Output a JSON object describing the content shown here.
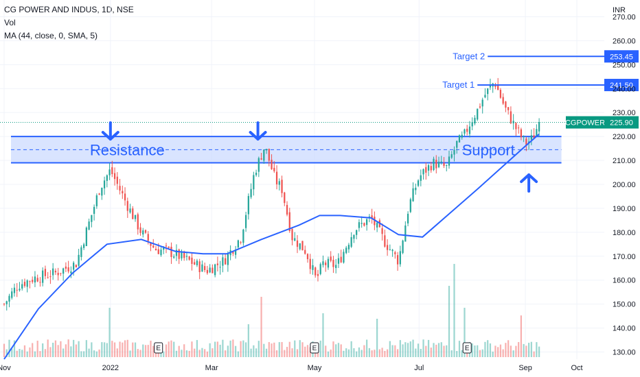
{
  "header": {
    "symbol_line": "CG POWER AND INDUS, 1D, NSE",
    "vol_label": "Vol",
    "ma_label": "MA (44, close, 0, SMA, 5)"
  },
  "currency": "INR",
  "colors": {
    "up": "#26a69a",
    "down": "#ef5350",
    "ma": "#2962ff",
    "zone_fill": "#c9d9ff",
    "zone_line": "#2962ff",
    "annotation": "#2962ff",
    "ticker_badge": "#089981"
  },
  "chart_data": {
    "type": "candlestick",
    "title": "CG POWER AND INDUS, 1D, NSE",
    "ylim": [
      127,
      277
    ],
    "y_ticks": [
      270,
      260,
      250,
      240,
      230,
      220,
      210,
      200,
      190,
      180,
      170,
      160,
      150,
      140,
      130
    ],
    "y_tick_labels": [
      "270.00",
      "260.00",
      "250.00",
      "240.00",
      "230.00",
      "220.00",
      "210.00",
      "200.00",
      "190.00",
      "180.00",
      "170.00",
      "160.00",
      "150.00",
      "140.00",
      "130.00"
    ],
    "x_tick_labels": [
      "Nov",
      "2022",
      "Mar",
      "May",
      "Jul",
      "Sep",
      "Oct"
    ],
    "x_tick_days": [
      0,
      62,
      121,
      181,
      242,
      304,
      334
    ],
    "x_range_days": [
      0,
      350
    ],
    "earnings_marker_days": [
      90,
      181,
      270,
      377
    ],
    "anchor_days": [
      0,
      8,
      18,
      30,
      42,
      50,
      56,
      62,
      70,
      80,
      88,
      96,
      108,
      118,
      128,
      138,
      146,
      152,
      158,
      162,
      168,
      176,
      182,
      186,
      194,
      204,
      214,
      222,
      230,
      236,
      242,
      250,
      258,
      264,
      268,
      272,
      276,
      280,
      286,
      292,
      298,
      304,
      308,
      312
    ],
    "anchor_prices": [
      150,
      158,
      161,
      163,
      167,
      185,
      199,
      206,
      194,
      180,
      173,
      172,
      168,
      164,
      168,
      178,
      205,
      216,
      202,
      198,
      178,
      172,
      160,
      167,
      166,
      181,
      186,
      176,
      168,
      191,
      203,
      209,
      207,
      217,
      220,
      226,
      231,
      237,
      243,
      232,
      224,
      217,
      219,
      225.9
    ],
    "ma": {
      "name": "MA (44, close, 0, SMA, 5)",
      "days": [
        0,
        20,
        40,
        60,
        80,
        100,
        116,
        130,
        150,
        172,
        184,
        196,
        214,
        230,
        244,
        260,
        276,
        290,
        304,
        312
      ],
      "values": [
        127,
        148,
        163,
        175,
        177,
        172,
        171,
        171,
        177,
        183,
        187,
        187,
        186,
        179,
        178,
        188,
        198,
        207,
        216,
        221
      ]
    },
    "volume": {
      "tall_days": [
        62,
        142,
        150,
        186,
        218,
        259,
        263,
        268,
        302
      ],
      "tall_heights": [
        0.45,
        0.3,
        0.55,
        0.4,
        0.35,
        0.65,
        0.85,
        0.45,
        0.38
      ]
    },
    "levels": [
      {
        "label": "Target 2",
        "price": 253.45,
        "price_label": "253.45",
        "from_day": 282
      },
      {
        "label": "Target 1",
        "price": 241.5,
        "price_label": "241.50",
        "from_day": 276
      }
    ],
    "zone": {
      "top": 220,
      "bottom": 209,
      "mid": 214.5,
      "from_day": 4,
      "to_day": 325
    },
    "zone_labels": {
      "left": "Resistance",
      "right": "Support"
    },
    "last_price": {
      "ticker": "CGPOWER",
      "value": 225.9,
      "label": "225.90"
    },
    "down_arrow_days": [
      62,
      148
    ],
    "up_arrow_day": 306
  }
}
